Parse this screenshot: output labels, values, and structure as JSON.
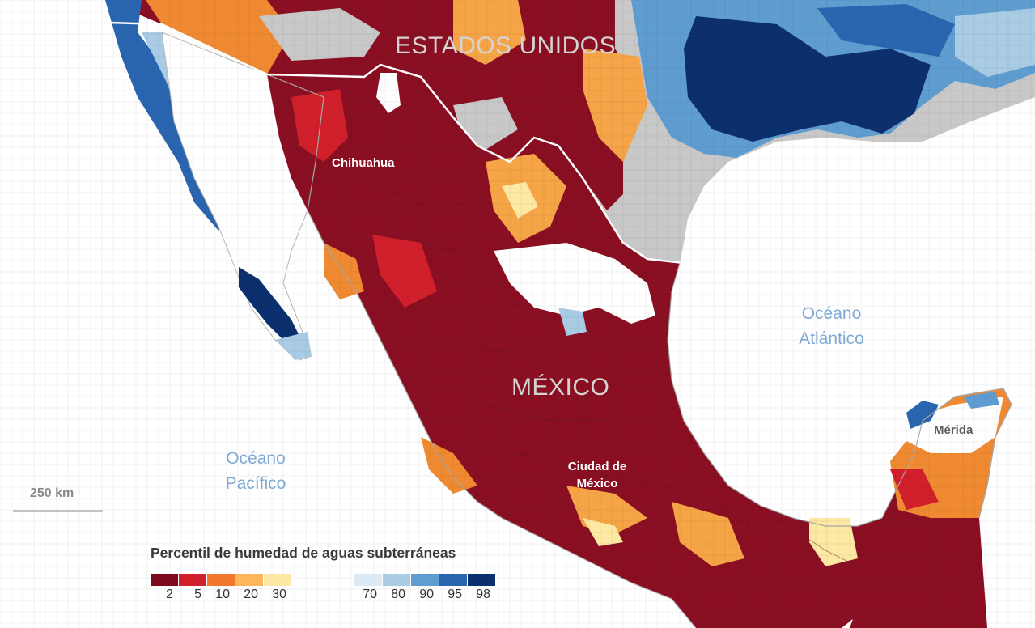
{
  "labels": {
    "country_us": "ESTADOS UNIDOS",
    "country_mx": "MÉXICO",
    "ocean_atlantic_line1": "Océano",
    "ocean_atlantic_line2": "Atlántico",
    "ocean_pacific_line1": "Océano",
    "ocean_pacific_line2": "Pacífico",
    "city_chihuahua": "Chihuahua",
    "city_cdmx_line1": "Ciudad de",
    "city_cdmx_line2": "México",
    "city_merida": "Mérida"
  },
  "scale": {
    "label": "250 km"
  },
  "legend": {
    "title": "Percentil de humedad de aguas subterráneas",
    "dry_bins": [
      {
        "color": "#7d0a1d",
        "tick": "2"
      },
      {
        "color": "#d1202b",
        "tick": "5"
      },
      {
        "color": "#f2782d",
        "tick": "10"
      },
      {
        "color": "#fbb75a",
        "tick": "20"
      },
      {
        "color": "#fde9a3",
        "tick": "30"
      }
    ],
    "wet_bins": [
      {
        "color": "#dde9f4",
        "tick": "70"
      },
      {
        "color": "#a9cbe4",
        "tick": "80"
      },
      {
        "color": "#5f9cd0",
        "tick": "90"
      },
      {
        "color": "#2a66b0",
        "tick": "95"
      },
      {
        "color": "#0c2f6e",
        "tick": "98"
      }
    ]
  },
  "colors": {
    "ocean": "#ffffff",
    "us_land": "#c8c8c8",
    "border": "#ffffff",
    "state_lines": "#6e2a2a"
  }
}
